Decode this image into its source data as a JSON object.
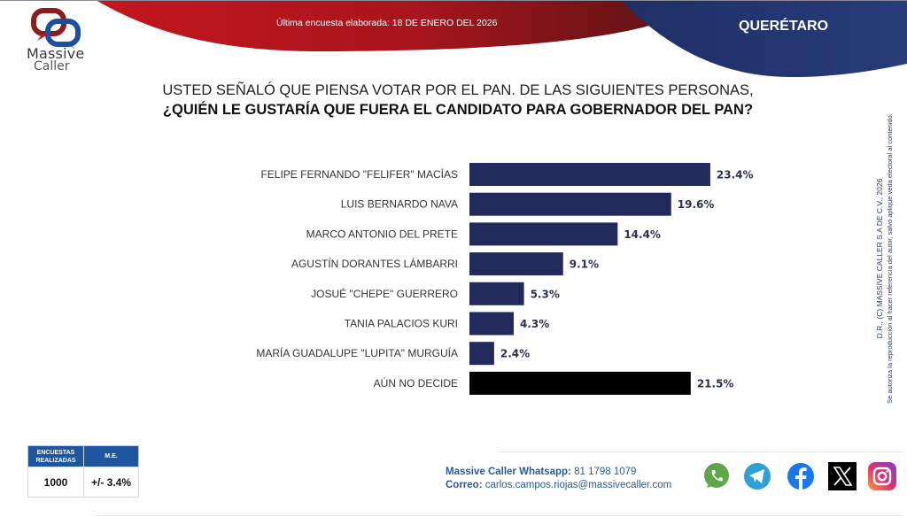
{
  "header": {
    "survey_date": "Última encuesta elaborada: 18 DE ENERO DEL 2026",
    "state": "QUERÉTARO",
    "logo": {
      "line1": "Massive",
      "line2": "Caller"
    }
  },
  "question": {
    "line1": "USTED SEÑALÓ QUE PIENSA VOTAR POR EL PAN. DE LAS SIGUIENTES PERSONAS,",
    "line2": "¿QUIÉN LE GUSTARÍA QUE FUERA EL CANDIDATO PARA GOBERNADOR DEL PAN?"
  },
  "chart_data": {
    "type": "bar",
    "orientation": "horizontal",
    "title": "¿QUIÉN LE GUSTARÍA QUE FUERA EL CANDIDATO PARA GOBERNADOR DEL PAN?",
    "xlabel": "",
    "ylabel": "",
    "unit": "%",
    "xlim": [
      0,
      25
    ],
    "grid": false,
    "categories": [
      "FELIPE FERNANDO \"FELIFER\" MACÍAS",
      "LUIS BERNARDO NAVA",
      "MARCO ANTONIO DEL PRETE",
      "AGUSTÍN DORANTES LÁMBARRI",
      "JOSUÉ \"CHEPE\" GUERRERO",
      "TANIA PALACIOS KURI",
      "MARÍA GUADALUPE \"LUPITA\" MURGUÍA",
      "AÚN NO DECIDE"
    ],
    "values": [
      23.4,
      19.6,
      14.4,
      9.1,
      5.3,
      4.3,
      2.4,
      21.5
    ],
    "value_labels": [
      "23.4%",
      "19.6%",
      "14.4%",
      "9.1%",
      "5.3%",
      "4.3%",
      "2.4%",
      "21.5%"
    ],
    "colors": [
      "#212a5a",
      "#212a5a",
      "#212a5a",
      "#212a5a",
      "#212a5a",
      "#212a5a",
      "#212a5a",
      "#000000"
    ]
  },
  "copyright": {
    "line1": "D.R., (C) MASSIVE CALLER S.A DE C.V., 2026",
    "line2": "Se autoriza la reproducción al hacer referencia del autor, salvo aplique veda electoral al contenido."
  },
  "stats": {
    "col1_header_1": "ENCUESTAS",
    "col1_header_2": "REALIZADAS",
    "col2_header": "M.E.",
    "surveys": "1000",
    "margin_error": "+/- 3.4%"
  },
  "contact": {
    "whatsapp_label": "Massive Caller Whatsapp:",
    "whatsapp_number": "81 1798 1079",
    "email_label": "Correo:",
    "email": "carlos.campos.riojas@massivecaller.com"
  },
  "social": [
    "whatsapp-icon",
    "telegram-icon",
    "facebook-icon",
    "x-icon",
    "instagram-icon"
  ],
  "colors": {
    "header_red": "#a8151d",
    "header_blue": "#223670",
    "bar_navy": "#212a5a",
    "bar_undecided": "#000000",
    "table_header": "#1e56a0",
    "contact_blue": "#2a5a9a"
  }
}
